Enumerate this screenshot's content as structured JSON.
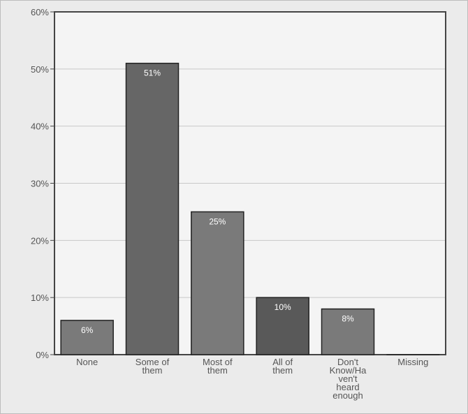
{
  "chart_data": {
    "type": "bar",
    "title": "",
    "xlabel": "",
    "ylabel": "",
    "categories": [
      [
        "None"
      ],
      [
        "Some of",
        "them"
      ],
      [
        "Most of",
        "them"
      ],
      [
        "All of",
        "them"
      ],
      [
        "Don't",
        "Know/Ha",
        "ven't",
        "heard",
        "enough"
      ],
      [
        "Missing"
      ]
    ],
    "values": [
      6,
      51,
      25,
      10,
      8,
      0
    ],
    "data_labels": [
      "6%",
      "51%",
      "25%",
      "10%",
      "8%",
      ""
    ],
    "bar_colors": [
      "#7a7a7a",
      "#666666",
      "#7a7a7a",
      "#595959",
      "#7a7a7a",
      "#7a7a7a"
    ],
    "ylim": [
      0,
      60
    ],
    "yticks": [
      0,
      10,
      20,
      30,
      40,
      50,
      60
    ],
    "ytick_labels": [
      "0%",
      "10%",
      "20%",
      "30%",
      "40%",
      "50%",
      "60%"
    ],
    "grid": true,
    "legend": false
  }
}
